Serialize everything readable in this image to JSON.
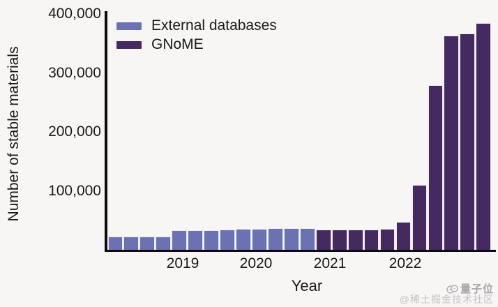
{
  "figure": {
    "ylabel": "Number of stable materials",
    "xlabel": "Year",
    "legend": [
      {
        "key": "external",
        "label": "External databases",
        "color": "#6b72b4"
      },
      {
        "key": "gnome",
        "label": "GNoME",
        "color": "#452961"
      }
    ]
  },
  "watermark": {
    "brand": "量子位",
    "community": "@稀土掘金技术社区",
    "logo": "qbit-face-icon"
  },
  "chart_data": {
    "type": "bar",
    "title": "",
    "xlabel": "Year",
    "ylabel": "Number of stable materials",
    "ylim": [
      0,
      400000
    ],
    "grid": false,
    "legend_position": "upper-left",
    "series_colors": {
      "external": "#6b72b4",
      "gnome": "#452961"
    },
    "bar_edge_color": "#eceaf3",
    "yticks": [
      {
        "value": 100000,
        "label": "100,000"
      },
      {
        "value": 200000,
        "label": "200,000"
      },
      {
        "value": 300000,
        "label": "300,000"
      },
      {
        "value": 400000,
        "label": "400,000"
      }
    ],
    "xticks": [
      {
        "label": "2019"
      },
      {
        "label": "2020"
      },
      {
        "label": "2021"
      },
      {
        "label": "2022"
      }
    ],
    "bars": [
      {
        "series": "external",
        "value": 22000
      },
      {
        "series": "external",
        "value": 22000
      },
      {
        "series": "external",
        "value": 23000
      },
      {
        "series": "external",
        "value": 23000
      },
      {
        "series": "external",
        "value": 33000
      },
      {
        "series": "external",
        "value": 33000
      },
      {
        "series": "external",
        "value": 33000
      },
      {
        "series": "external",
        "value": 34000
      },
      {
        "series": "external",
        "value": 36000
      },
      {
        "series": "external",
        "value": 36000
      },
      {
        "series": "external",
        "value": 37000
      },
      {
        "series": "external",
        "value": 37000
      },
      {
        "series": "external",
        "value": 37000
      },
      {
        "series": "gnome",
        "value": 34000
      },
      {
        "series": "gnome",
        "value": 34000
      },
      {
        "series": "gnome",
        "value": 34000
      },
      {
        "series": "gnome",
        "value": 34000
      },
      {
        "series": "gnome",
        "value": 35000
      },
      {
        "series": "gnome",
        "value": 47000
      },
      {
        "series": "gnome",
        "value": 110000
      },
      {
        "series": "gnome",
        "value": 280000
      },
      {
        "series": "gnome",
        "value": 364000
      },
      {
        "series": "gnome",
        "value": 367000
      },
      {
        "series": "gnome",
        "value": 385000
      }
    ]
  }
}
